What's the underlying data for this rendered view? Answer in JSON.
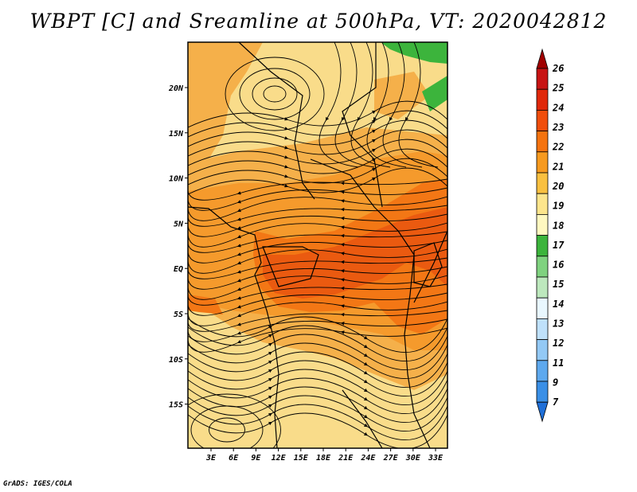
{
  "title": "WBPT [C] and Sreamline at 500hPa, VT: 2020042812",
  "credit": "GrADS: IGES/COLA",
  "map": {
    "lon_labels": [
      "3E",
      "6E",
      "9E",
      "12E",
      "15E",
      "18E",
      "21E",
      "24E",
      "27E",
      "30E",
      "33E"
    ],
    "lat_labels": [
      "20N",
      "15N",
      "10N",
      "5N",
      "EQ",
      "5S",
      "10S",
      "15S"
    ],
    "background_color": "#f9dc8a"
  },
  "colorbar": {
    "labels": [
      "26",
      "25",
      "24",
      "23",
      "22",
      "21",
      "20",
      "19",
      "18",
      "17",
      "16",
      "15",
      "14",
      "13",
      "12",
      "11",
      "9",
      "7"
    ],
    "colors": [
      "#a00000",
      "#c81414",
      "#e0280a",
      "#f04e0c",
      "#f5730f",
      "#f79a1f",
      "#f9c040",
      "#fde58c",
      "#fff8c0",
      "#3cb43c",
      "#7fd27f",
      "#bde8bd",
      "#e9f7ff",
      "#bfe1fb",
      "#93c9f5",
      "#5ea9ee",
      "#3a8fe6",
      "#1f6fd8"
    ]
  }
}
